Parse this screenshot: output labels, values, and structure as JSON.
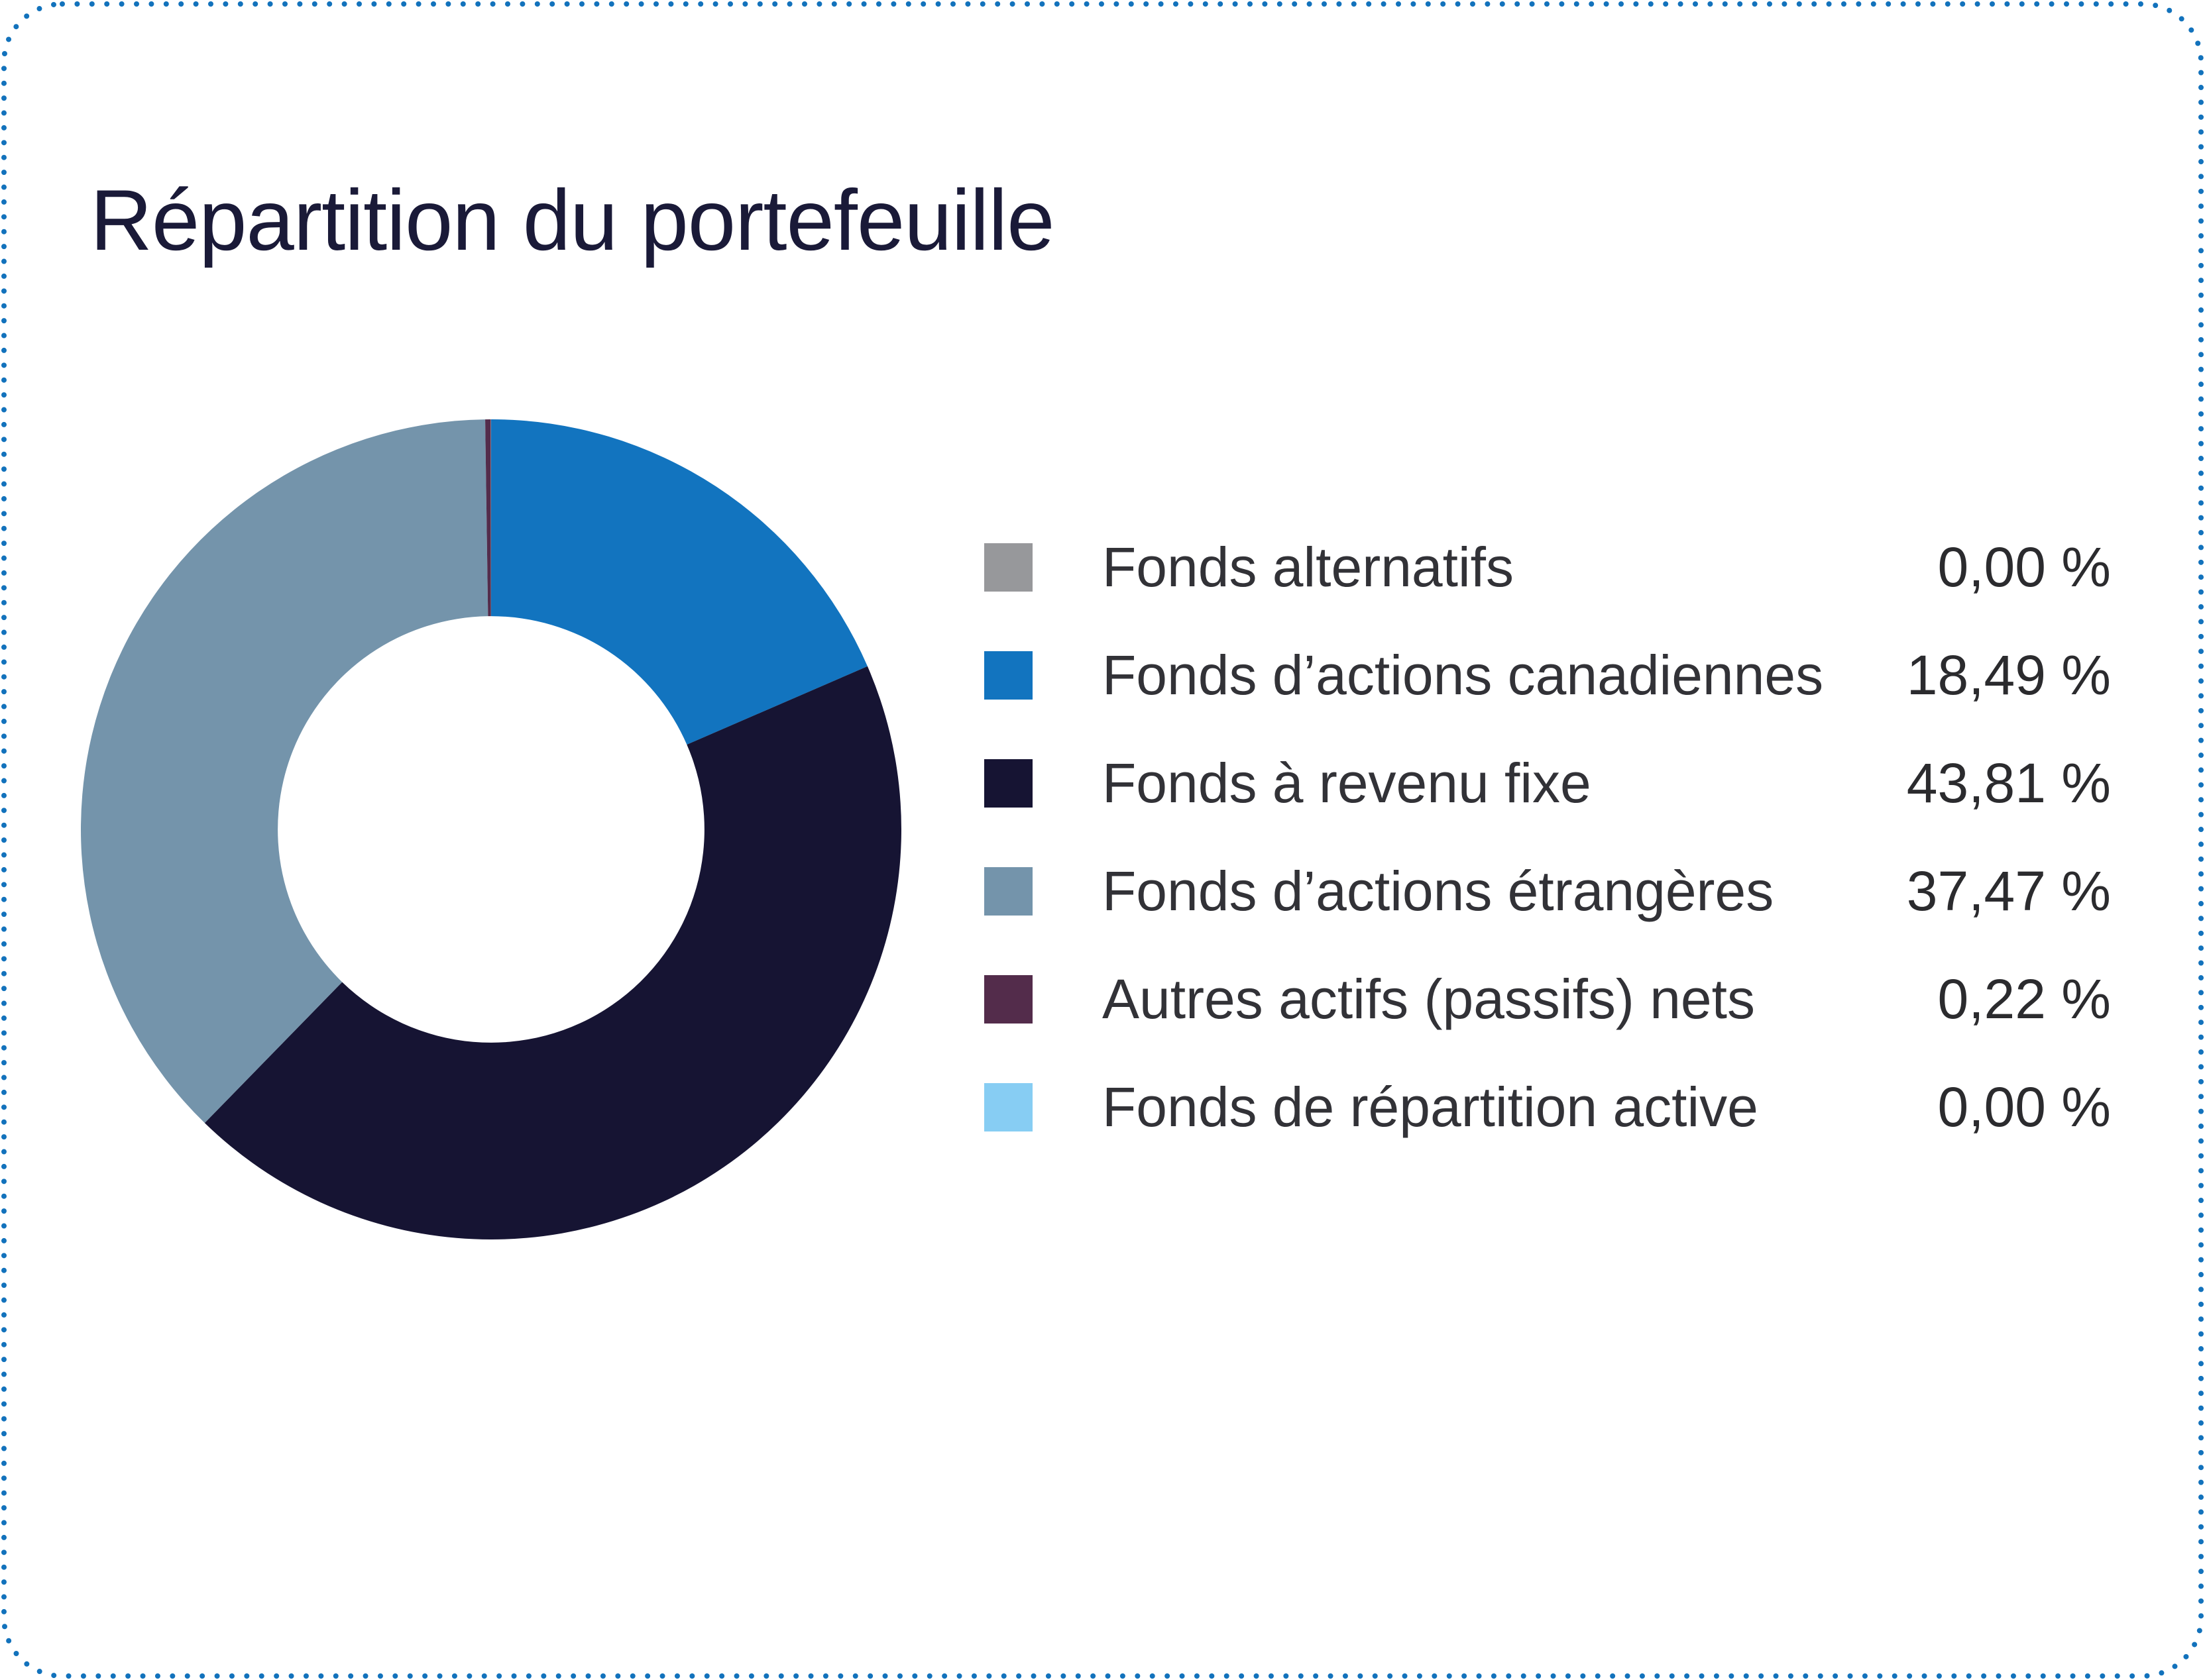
{
  "page": {
    "background_color": "#ffffff",
    "border_color": "#1272bc",
    "border_style": "dotted-rounded-rect"
  },
  "header": {
    "title": "Répartition du portefeuille",
    "title_color": "#1a1a38"
  },
  "chart_data": {
    "type": "pie",
    "subtype": "donut",
    "title": "Répartition du portefeuille",
    "start_angle_deg": 0,
    "direction": "clockwise",
    "inner_radius_ratio": 0.52,
    "legend_position": "right",
    "value_format": "fr-CA percent, comma decimal",
    "series": [
      {
        "label": "Fonds alternatifs",
        "value_pct": 0.0,
        "display": "0,00 %",
        "color": "#97989b"
      },
      {
        "label": "Fonds d’actions canadiennes",
        "value_pct": 18.49,
        "display": "18,49 %",
        "color": "#1274bf"
      },
      {
        "label": "Fonds à revenu fixe",
        "value_pct": 43.81,
        "display": "43,81 %",
        "color": "#161433"
      },
      {
        "label": "Fonds d’actions étrangères",
        "value_pct": 37.47,
        "display": "37,47 %",
        "color": "#7494ab"
      },
      {
        "label": "Autres actifs (passifs) nets",
        "value_pct": 0.22,
        "display": "0,22 %",
        "color": "#532c4b"
      },
      {
        "label": "Fonds de répartition active",
        "value_pct": 0.0,
        "display": "0,00 %",
        "color": "#87cdf3"
      }
    ]
  }
}
